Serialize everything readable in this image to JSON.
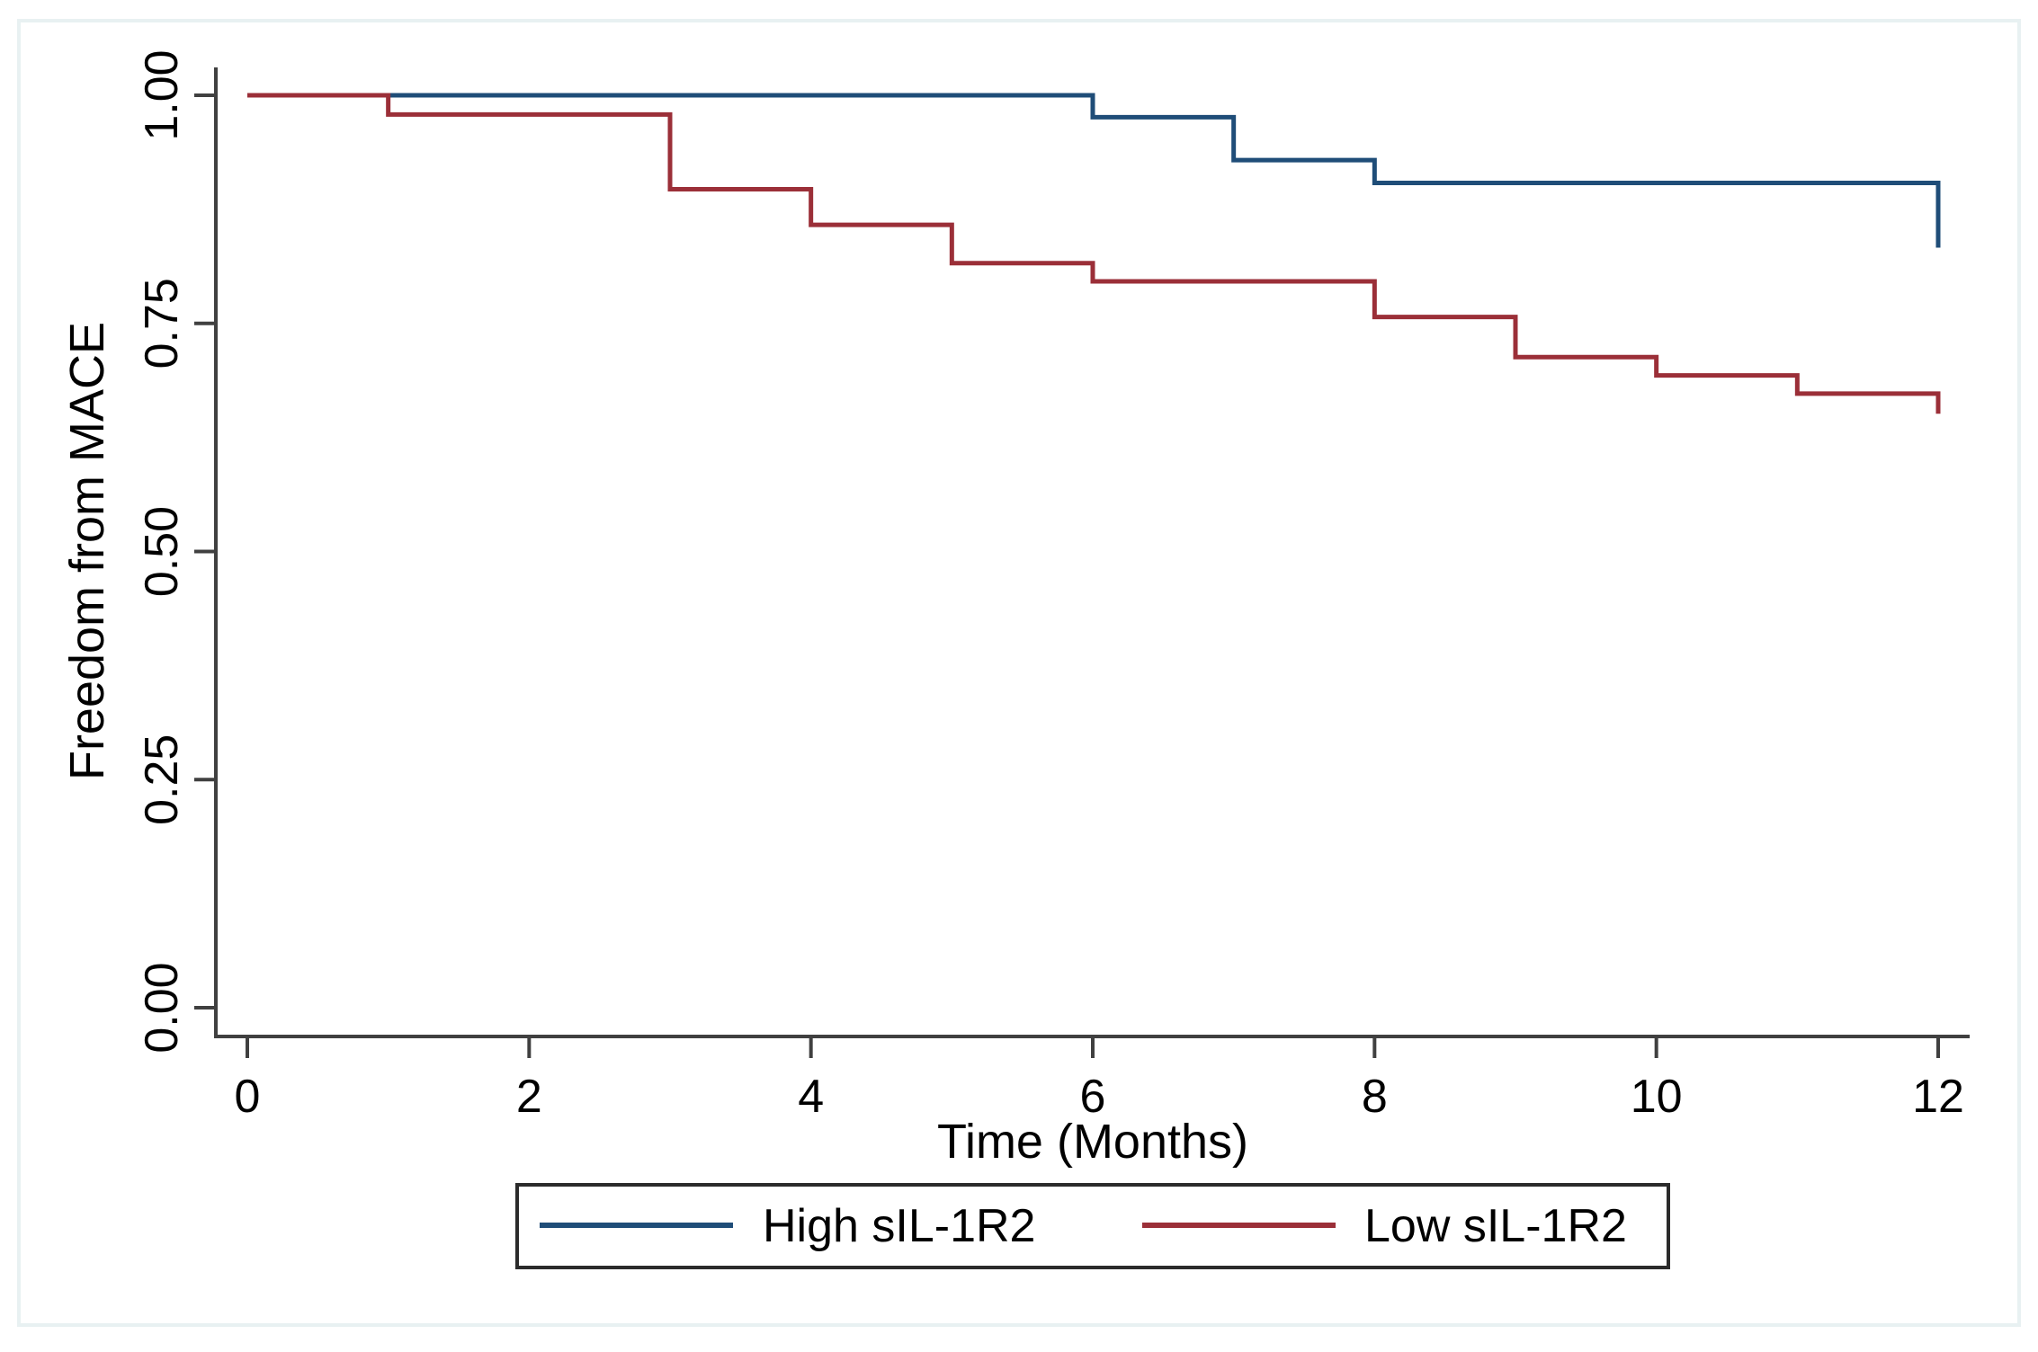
{
  "chart_data": {
    "type": "line",
    "subtype": "kaplan-meier-step",
    "title": "",
    "xlabel": "Time (Months)",
    "ylabel": "Freedom from MACE",
    "xlim": [
      0,
      12
    ],
    "ylim": [
      0.0,
      1.0
    ],
    "grid": false,
    "legend_position": "bottom-center",
    "x_ticks": [
      {
        "value": 0,
        "label": "0"
      },
      {
        "value": 2,
        "label": "2"
      },
      {
        "value": 4,
        "label": "4"
      },
      {
        "value": 6,
        "label": "6"
      },
      {
        "value": 8,
        "label": "8"
      },
      {
        "value": 10,
        "label": "10"
      },
      {
        "value": 12,
        "label": "12"
      }
    ],
    "y_ticks": [
      {
        "value": 0.0,
        "label": "0.00"
      },
      {
        "value": 0.25,
        "label": "0.25"
      },
      {
        "value": 0.5,
        "label": "0.50"
      },
      {
        "value": 0.75,
        "label": "0.75"
      },
      {
        "value": 1.0,
        "label": "1.00"
      }
    ],
    "series": [
      {
        "name": "High sIL-1R2",
        "color": "#1f4d78",
        "steps": [
          {
            "t": 0,
            "s": 1.0
          },
          {
            "t": 6,
            "s": 0.976
          },
          {
            "t": 7,
            "s": 0.929
          },
          {
            "t": 8,
            "s": 0.904
          },
          {
            "t": 12,
            "s": 0.833
          }
        ]
      },
      {
        "name": "Low sIL-1R2",
        "color": "#9b2f38",
        "steps": [
          {
            "t": 0,
            "s": 1.0
          },
          {
            "t": 1,
            "s": 0.979
          },
          {
            "t": 3,
            "s": 0.897
          },
          {
            "t": 4,
            "s": 0.858
          },
          {
            "t": 5,
            "s": 0.816
          },
          {
            "t": 6,
            "s": 0.796
          },
          {
            "t": 8,
            "s": 0.757
          },
          {
            "t": 9,
            "s": 0.713
          },
          {
            "t": 10,
            "s": 0.693
          },
          {
            "t": 11,
            "s": 0.673
          },
          {
            "t": 12,
            "s": 0.651
          }
        ]
      }
    ]
  }
}
